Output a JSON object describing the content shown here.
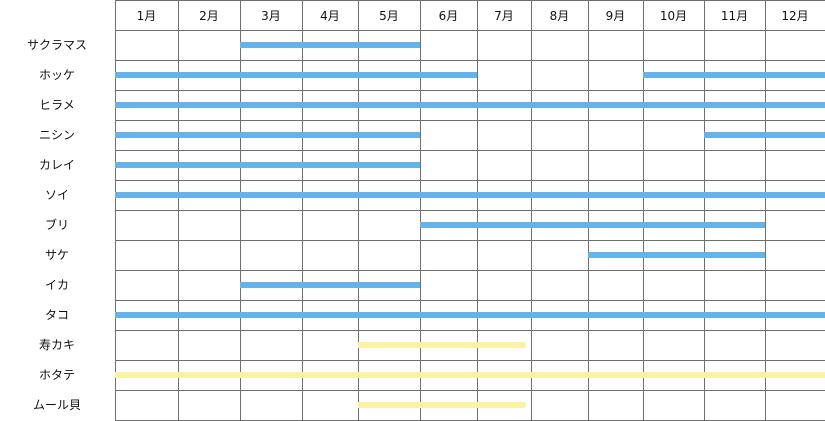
{
  "chart_data": {
    "type": "gantt",
    "title": "",
    "months": [
      "1月",
      "2月",
      "3月",
      "4月",
      "5月",
      "6月",
      "7月",
      "8月",
      "9月",
      "10月",
      "11月",
      "12月"
    ],
    "grid": true,
    "colors": {
      "blue": "#66b3ec",
      "yellow": "#fbf2a3"
    },
    "rows": [
      {
        "name": "サクラマス",
        "spans": [
          {
            "start": 3.0,
            "end": 6.0,
            "color": "blue"
          }
        ]
      },
      {
        "name": "ホッケ",
        "spans": [
          {
            "start": 1.0,
            "end": 7.0,
            "color": "blue"
          },
          {
            "start": 10.0,
            "end": 13.0,
            "color": "blue"
          }
        ]
      },
      {
        "name": "ヒラメ",
        "spans": [
          {
            "start": 1.0,
            "end": 13.0,
            "color": "blue"
          }
        ]
      },
      {
        "name": "ニシン",
        "spans": [
          {
            "start": 1.0,
            "end": 6.0,
            "color": "blue"
          },
          {
            "start": 11.0,
            "end": 13.0,
            "color": "blue"
          }
        ]
      },
      {
        "name": "カレイ",
        "spans": [
          {
            "start": 1.0,
            "end": 6.0,
            "color": "blue"
          }
        ]
      },
      {
        "name": "ソイ",
        "spans": [
          {
            "start": 1.0,
            "end": 13.0,
            "color": "blue"
          }
        ]
      },
      {
        "name": "ブリ",
        "spans": [
          {
            "start": 6.0,
            "end": 12.0,
            "color": "blue"
          }
        ]
      },
      {
        "name": "サケ",
        "spans": [
          {
            "start": 9.0,
            "end": 12.0,
            "color": "blue"
          }
        ]
      },
      {
        "name": "イカ",
        "spans": [
          {
            "start": 3.0,
            "end": 6.0,
            "color": "blue"
          }
        ]
      },
      {
        "name": "タコ",
        "spans": [
          {
            "start": 1.0,
            "end": 13.0,
            "color": "blue"
          }
        ]
      },
      {
        "name": "寿カキ",
        "spans": [
          {
            "start": 5.0,
            "end": 7.9,
            "color": "yellow"
          }
        ]
      },
      {
        "name": "ホタテ",
        "spans": [
          {
            "start": 1.0,
            "end": 13.0,
            "color": "yellow"
          }
        ]
      },
      {
        "name": "ムール貝",
        "spans": [
          {
            "start": 5.0,
            "end": 7.9,
            "color": "yellow"
          }
        ]
      }
    ]
  }
}
